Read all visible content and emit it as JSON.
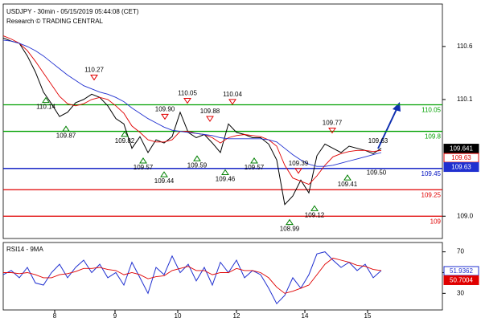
{
  "chart_data": [
    {
      "type": "line",
      "title": "USDJPY - 30min - 05/15/2019 05:44:08 (CET)",
      "subtitle": "Research © TRADING CENTRAL",
      "x": [
        0,
        1,
        2,
        3,
        4,
        5,
        6,
        7,
        8,
        9,
        10,
        11,
        12,
        13,
        14,
        15,
        16,
        17,
        18,
        19,
        20,
        21,
        22,
        23,
        24,
        25,
        26,
        27,
        28,
        29,
        30,
        31,
        32,
        33,
        34,
        35,
        36,
        37,
        38,
        39,
        40,
        41,
        42,
        43,
        44,
        45,
        46,
        47
      ],
      "xlim": [
        0,
        54.6
      ],
      "ylim": [
        108.79,
        111.0
      ],
      "yticks": [
        110.6,
        110.1,
        {
          "value": 109,
          "label": "109.0"
        }
      ],
      "series": [
        {
          "name": "Price",
          "color": "#000000",
          "values": [
            110.68,
            110.65,
            110.63,
            110.51,
            110.36,
            110.17,
            110.06,
            109.94,
            109.98,
            110.07,
            110.1,
            110.15,
            110.12,
            110.04,
            109.92,
            109.87,
            109.64,
            109.75,
            109.6,
            109.72,
            109.69,
            109.75,
            109.98,
            109.79,
            109.74,
            109.77,
            109.69,
            109.6,
            109.87,
            109.79,
            109.77,
            109.74,
            109.74,
            109.68,
            109.53,
            109.11,
            109.19,
            109.34,
            109.22,
            109.57,
            109.68,
            109.64,
            109.6,
            109.66,
            109.64,
            109.62,
            109.59,
            109.64
          ]
        },
        {
          "name": "MA fast",
          "color": "#e00000",
          "values": [
            110.7,
            110.67,
            110.63,
            110.56,
            110.46,
            110.35,
            110.24,
            110.13,
            110.06,
            110.04,
            110.06,
            110.1,
            110.12,
            110.1,
            110.04,
            109.97,
            109.85,
            109.79,
            109.72,
            109.7,
            109.7,
            109.72,
            109.8,
            109.8,
            109.78,
            109.77,
            109.74,
            109.69,
            109.74,
            109.76,
            109.77,
            109.76,
            109.75,
            109.72,
            109.66,
            109.48,
            109.36,
            109.33,
            109.3,
            109.38,
            109.48,
            109.56,
            109.59,
            109.61,
            109.62,
            109.62,
            109.61,
            109.62
          ]
        },
        {
          "name": "MA slow",
          "color": "#2030d0",
          "values": [
            110.66,
            110.65,
            110.63,
            110.6,
            110.56,
            110.51,
            110.45,
            110.39,
            110.33,
            110.28,
            110.23,
            110.2,
            110.17,
            110.15,
            110.12,
            110.08,
            110.02,
            109.97,
            109.92,
            109.88,
            109.84,
            109.81,
            109.8,
            109.79,
            109.78,
            109.77,
            109.76,
            109.74,
            109.73,
            109.73,
            109.73,
            109.73,
            109.73,
            109.72,
            109.7,
            109.64,
            109.58,
            109.53,
            109.49,
            109.47,
            109.47,
            109.48,
            109.5,
            109.52,
            109.54,
            109.56,
            109.58,
            109.6
          ]
        }
      ],
      "levels": [
        {
          "value": 110.05,
          "color": "#00a000"
        },
        {
          "value": 109.8,
          "color": "#00a000"
        },
        {
          "value": 109.45,
          "color": "#0010c0"
        },
        {
          "value": 109.25,
          "color": "#e00000"
        },
        {
          "value": 109,
          "color": "#e00000"
        }
      ],
      "annotations": [
        {
          "x": 11.3,
          "value": 110.27,
          "kind": "peak"
        },
        {
          "x": 5.3,
          "value": 110.14,
          "kind": "trough"
        },
        {
          "x": 7.8,
          "value": 109.87,
          "kind": "trough"
        },
        {
          "x": 15.1,
          "value": 109.82,
          "kind": "trough"
        },
        {
          "x": 20.1,
          "value": 109.9,
          "label": "109.90",
          "kind": "peak"
        },
        {
          "x": 17.4,
          "value": 109.57,
          "kind": "trough"
        },
        {
          "x": 20,
          "value": 109.44,
          "kind": "trough"
        },
        {
          "x": 22.9,
          "value": 110.05,
          "kind": "peak"
        },
        {
          "x": 24.1,
          "value": 109.59,
          "kind": "trough"
        },
        {
          "x": 25.7,
          "value": 109.88,
          "kind": "peak"
        },
        {
          "x": 28.5,
          "value": 110.04,
          "kind": "peak"
        },
        {
          "x": 27.6,
          "value": 109.46,
          "kind": "trough"
        },
        {
          "x": 31.2,
          "value": 109.57,
          "kind": "trough"
        },
        {
          "x": 35.6,
          "value": 108.99,
          "kind": "trough"
        },
        {
          "x": 36.7,
          "value": 109.39,
          "kind": "peak"
        },
        {
          "x": 38.7,
          "value": 109.12,
          "kind": "trough"
        },
        {
          "x": 40.9,
          "value": 109.77,
          "kind": "peak"
        },
        {
          "x": 42.8,
          "value": 109.41,
          "kind": "trough"
        },
        {
          "x": 46.4,
          "value": 109.5,
          "label": "109.50",
          "kind": "note"
        },
        {
          "x": 46.6,
          "value": 109.63,
          "kind": "note-up"
        }
      ],
      "price_tags": [
        {
          "value": 109.641,
          "color": "#000000",
          "filled": true
        },
        {
          "value": 109.63,
          "color": "#e00000",
          "filled": false
        },
        {
          "value": 109.63,
          "color": "#2030d0",
          "filled": true
        }
      ]
    },
    {
      "type": "line",
      "title": "RSI14 - 9MA",
      "x": [
        0,
        1,
        2,
        3,
        4,
        5,
        6,
        7,
        8,
        9,
        10,
        11,
        12,
        13,
        14,
        15,
        16,
        17,
        18,
        19,
        20,
        21,
        22,
        23,
        24,
        25,
        26,
        27,
        28,
        29,
        30,
        31,
        32,
        33,
        34,
        35,
        36,
        37,
        38,
        39,
        40,
        41,
        42,
        43,
        44,
        45,
        46,
        47
      ],
      "xlim": [
        0,
        54.6
      ],
      "ylim": [
        14,
        79
      ],
      "yticks": [
        70,
        50,
        30
      ],
      "xticks": [
        {
          "value": 6.4,
          "label": "8"
        },
        {
          "value": 13.9,
          "label": "9"
        },
        {
          "value": 21.7,
          "label": "10"
        },
        {
          "value": 29,
          "label": "12"
        },
        {
          "value": 37.5,
          "label": "14"
        },
        {
          "value": 45.3,
          "label": "15"
        }
      ],
      "series": [
        {
          "name": "RSI14",
          "color": "#2030d0",
          "values": [
            48,
            52,
            45,
            55,
            40,
            38,
            50,
            58,
            45,
            55,
            62,
            50,
            58,
            45,
            50,
            38,
            60,
            45,
            30,
            55,
            48,
            66,
            50,
            58,
            42,
            55,
            38,
            60,
            50,
            62,
            45,
            52,
            48,
            35,
            20,
            28,
            45,
            35,
            48,
            68,
            70,
            62,
            55,
            60,
            52,
            58,
            45,
            52
          ]
        },
        {
          "name": "9MA",
          "color": "#e00000",
          "values": [
            50,
            50,
            49,
            50,
            48,
            45,
            45,
            48,
            49,
            51,
            54,
            54,
            55,
            53,
            52,
            48,
            50,
            48,
            44,
            46,
            47,
            52,
            54,
            56,
            52,
            52,
            48,
            50,
            50,
            54,
            52,
            52,
            50,
            45,
            36,
            30,
            32,
            35,
            38,
            48,
            58,
            64,
            62,
            60,
            57,
            56,
            53,
            52
          ]
        }
      ],
      "price_tags": [
        {
          "value": 51.9362,
          "color": "#2030d0",
          "filled": false
        },
        {
          "value": 50.7004,
          "color": "#e00000",
          "filled": true
        }
      ]
    }
  ]
}
